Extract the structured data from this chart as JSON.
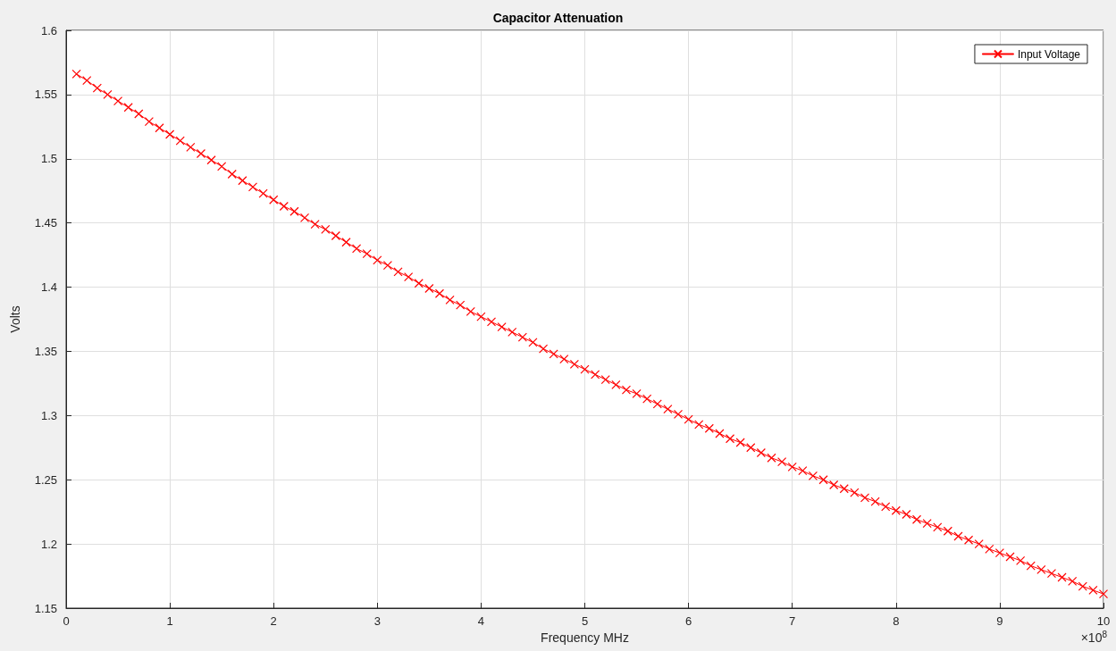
{
  "chart_data": {
    "type": "line",
    "title": "Capacitor Attenuation",
    "xlabel": "Frequency MHz",
    "ylabel": "Volts",
    "x": [
      0.1,
      0.2,
      0.3,
      0.4,
      0.5,
      0.6,
      0.7,
      0.8,
      0.9,
      1.0,
      1.1,
      1.2,
      1.3,
      1.4,
      1.5,
      1.6,
      1.7,
      1.8,
      1.9,
      2.0,
      2.1,
      2.2,
      2.3,
      2.4,
      2.5,
      2.6,
      2.7,
      2.8,
      2.9,
      3.0,
      3.1,
      3.2,
      3.3,
      3.4,
      3.5,
      3.6,
      3.7,
      3.8,
      3.9,
      4.0,
      4.1,
      4.2,
      4.3,
      4.4,
      4.5,
      4.6,
      4.7,
      4.8,
      4.9,
      5.0,
      5.1,
      5.2,
      5.3,
      5.4,
      5.5,
      5.6,
      5.7,
      5.8,
      5.9,
      6.0,
      6.1,
      6.2,
      6.3,
      6.4,
      6.5,
      6.6,
      6.7,
      6.8,
      6.9,
      7.0,
      7.1,
      7.2,
      7.3,
      7.4,
      7.5,
      7.6,
      7.7,
      7.8,
      7.9,
      8.0,
      8.1,
      8.2,
      8.3,
      8.4,
      8.5,
      8.6,
      8.7,
      8.8,
      8.9,
      9.0,
      9.1,
      9.2,
      9.3,
      9.4,
      9.5,
      9.6,
      9.7,
      9.8,
      9.9,
      10.0
    ],
    "series": [
      {
        "name": "Input Voltage",
        "color": "#ff0000",
        "values": [
          1.566,
          1.561,
          1.555,
          1.55,
          1.545,
          1.54,
          1.535,
          1.529,
          1.524,
          1.519,
          1.514,
          1.509,
          1.504,
          1.499,
          1.494,
          1.488,
          1.483,
          1.478,
          1.473,
          1.468,
          1.463,
          1.459,
          1.454,
          1.449,
          1.445,
          1.44,
          1.435,
          1.43,
          1.426,
          1.421,
          1.417,
          1.412,
          1.408,
          1.403,
          1.399,
          1.395,
          1.39,
          1.386,
          1.381,
          1.377,
          1.373,
          1.369,
          1.365,
          1.361,
          1.357,
          1.352,
          1.348,
          1.344,
          1.34,
          1.336,
          1.332,
          1.328,
          1.324,
          1.32,
          1.317,
          1.313,
          1.309,
          1.305,
          1.301,
          1.297,
          1.293,
          1.29,
          1.286,
          1.282,
          1.279,
          1.275,
          1.271,
          1.267,
          1.264,
          1.26,
          1.257,
          1.253,
          1.25,
          1.246,
          1.243,
          1.24,
          1.236,
          1.233,
          1.229,
          1.226,
          1.223,
          1.219,
          1.216,
          1.213,
          1.21,
          1.206,
          1.203,
          1.2,
          1.196,
          1.193,
          1.19,
          1.187,
          1.183,
          1.18,
          1.177,
          1.174,
          1.171,
          1.167,
          1.164,
          1.161
        ]
      }
    ],
    "xlim": [
      0,
      10
    ],
    "xticks": [
      0,
      1,
      2,
      3,
      4,
      5,
      6,
      7,
      8,
      9,
      10
    ],
    "ylim": [
      1.15,
      1.6
    ],
    "yticks": [
      1.15,
      1.2,
      1.25,
      1.3,
      1.35,
      1.4,
      1.45,
      1.5,
      1.55,
      1.6
    ],
    "annotations": [
      "×10$^{8}$"
    ],
    "grid": true,
    "legend": "top right",
    "marker": "cross",
    "line_style": "solid"
  }
}
